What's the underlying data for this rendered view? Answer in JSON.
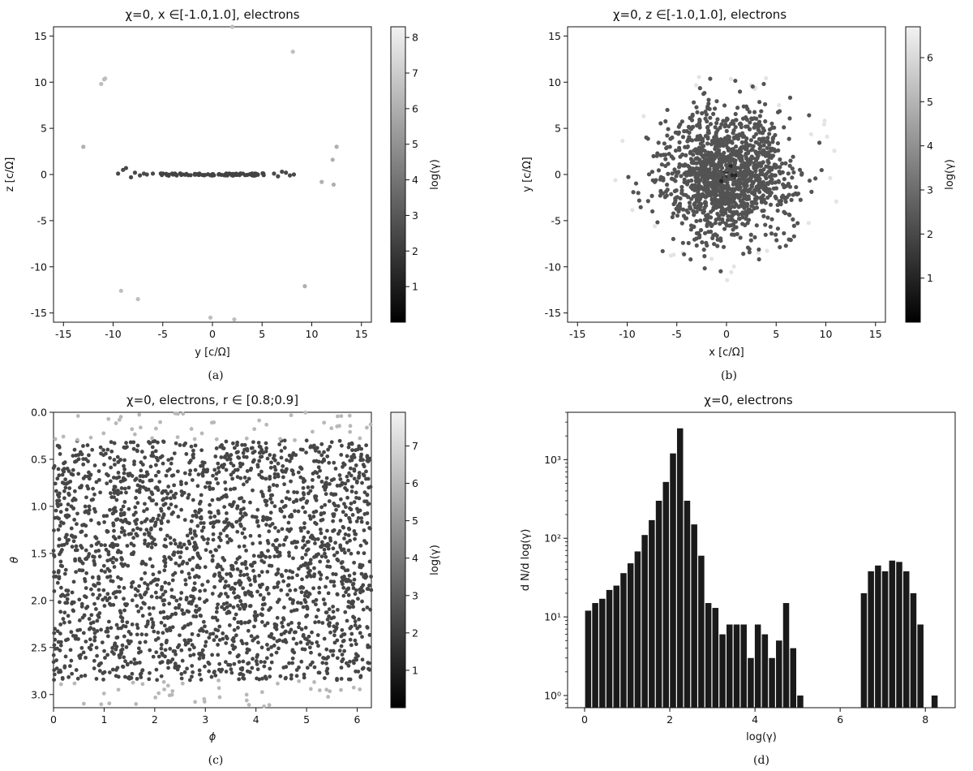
{
  "chart_data": [
    {
      "id": "a",
      "type": "scatter",
      "title": "χ=0, x ∈[-1.0,1.0], electrons",
      "xlabel": "y [c/Ω]",
      "ylabel": "z [c/Ω]",
      "caption": "(a)",
      "xlim": [
        -16,
        16
      ],
      "ylim": [
        -16,
        16
      ],
      "xticks": [
        -15,
        -10,
        -5,
        0,
        5,
        10,
        15
      ],
      "yticks": [
        -15,
        -10,
        -5,
        0,
        5,
        10,
        15
      ],
      "colorbar": {
        "label": "log(γ)",
        "range": [
          0,
          8.3
        ],
        "ticks": [
          1,
          2,
          3,
          4,
          5,
          6,
          7,
          8
        ]
      },
      "points": [
        [
          -11.2,
          9.8,
          6.5
        ],
        [
          -10.9,
          10.3,
          6.5
        ],
        [
          -10.8,
          10.4,
          6.5
        ],
        [
          -13.0,
          3.0,
          6.0
        ],
        [
          2.0,
          16.0,
          6.5
        ],
        [
          8.1,
          13.3,
          6.5
        ],
        [
          12.5,
          3.0,
          6.0
        ],
        [
          12.1,
          1.6,
          6.0
        ],
        [
          11.0,
          -0.8,
          6.0
        ],
        [
          12.2,
          -1.1,
          6.0
        ],
        [
          -9.2,
          -12.6,
          6.5
        ],
        [
          -7.5,
          -13.5,
          6.5
        ],
        [
          9.3,
          -12.1,
          6.0
        ],
        [
          -0.2,
          -15.5,
          6.5
        ],
        [
          2.2,
          -15.7,
          6.5
        ],
        [
          -9.5,
          0.1,
          2.5
        ],
        [
          -9.0,
          0.5,
          2.5
        ],
        [
          -8.7,
          0.7,
          2.5
        ],
        [
          -8.2,
          -0.3,
          2.5
        ],
        [
          -7.8,
          0.2,
          2.5
        ],
        [
          -7.3,
          -0.1,
          2.5
        ],
        [
          -6.9,
          0.1,
          2.5
        ],
        [
          -6.6,
          0.0,
          2.5
        ],
        [
          -6.0,
          0.1,
          2.5
        ],
        [
          6.2,
          0.1,
          2.5
        ],
        [
          6.6,
          -0.2,
          2.5
        ],
        [
          7.0,
          0.3,
          2.5
        ],
        [
          7.4,
          0.2,
          2.5
        ],
        [
          7.8,
          -0.1,
          2.5
        ],
        [
          8.2,
          0.0,
          2.5
        ]
      ],
      "core": {
        "y_range": [
          -5.2,
          5.2
        ],
        "z": 0,
        "count": 90,
        "log_gamma": 2.3
      }
    },
    {
      "id": "b",
      "type": "scatter",
      "title": "χ=0, z ∈[-1.0,1.0], electrons",
      "xlabel": "x [c/Ω]",
      "ylabel": "y [c/Ω]",
      "caption": "(b)",
      "xlim": [
        -16,
        16
      ],
      "ylim": [
        -16,
        16
      ],
      "xticks": [
        -15,
        -10,
        -5,
        0,
        5,
        10,
        15
      ],
      "yticks": [
        -15,
        -10,
        -5,
        0,
        5,
        10,
        15
      ],
      "colorbar": {
        "label": "log(γ)",
        "range": [
          0,
          6.7
        ],
        "ticks": [
          1,
          2,
          3,
          4,
          5,
          6
        ]
      },
      "distribution": {
        "center": [
          0,
          0
        ],
        "spread": 3.3,
        "count": 1400,
        "log_gamma_core": 2.3,
        "outer_radius": 11.5,
        "log_gamma_outer": 6.3
      }
    },
    {
      "id": "c",
      "type": "scatter",
      "title": "χ=0, electrons, r ∈ [0.8;0.9]",
      "xlabel": "ϕ",
      "ylabel": "θ",
      "caption": "(c)",
      "xlim": [
        0,
        6.28
      ],
      "ylim": [
        3.14,
        0
      ],
      "xticks": [
        0,
        1,
        2,
        3,
        4,
        5,
        6
      ],
      "yticks": [
        0.0,
        0.5,
        1.0,
        1.5,
        2.0,
        2.5,
        3.0
      ],
      "yticklabels": [
        "0.0",
        "0.5",
        "1.0",
        "1.5",
        "2.0",
        "2.5",
        "3.0"
      ],
      "colorbar": {
        "label": "log(γ)",
        "range": [
          0,
          7.9
        ],
        "ticks": [
          1,
          2,
          3,
          4,
          5,
          6,
          7
        ]
      },
      "distribution": {
        "count": 2300,
        "log_gamma_main": 2.3,
        "polar_count": 90,
        "log_gamma_polar": 6.0
      }
    },
    {
      "id": "d",
      "type": "bar",
      "title": "χ=0, electrons",
      "xlabel": "log(γ)",
      "ylabel": "d N/d log(γ)",
      "caption": "(d)",
      "yscale": "log",
      "xlim": [
        -0.4,
        8.7
      ],
      "ylim": [
        0.7,
        4000
      ],
      "xticks": [
        0,
        2,
        4,
        6,
        8
      ],
      "yticks": [
        1,
        10,
        100,
        1000
      ],
      "yticklabels": [
        "10⁰",
        "10¹",
        "10²",
        "10³"
      ],
      "bin_width": 0.166,
      "bins_start": [
        0.0,
        0.166,
        0.332,
        0.498,
        0.664,
        0.83,
        0.996,
        1.162,
        1.328,
        1.494,
        1.66,
        1.826,
        1.992,
        2.158,
        2.324,
        2.49,
        2.656,
        2.822,
        2.988,
        3.154,
        3.32,
        3.486,
        3.652,
        3.818,
        3.984,
        4.15,
        4.316,
        4.482,
        4.648,
        4.814,
        4.98,
        6.474,
        6.64,
        6.806,
        6.972,
        7.138,
        7.304,
        7.47,
        7.636,
        7.802,
        8.134
      ],
      "values": [
        12,
        15,
        17,
        22,
        25,
        36,
        48,
        68,
        110,
        170,
        300,
        520,
        1200,
        2500,
        300,
        150,
        60,
        15,
        13,
        6,
        8,
        8,
        8,
        3,
        8,
        6,
        3,
        5,
        15,
        4,
        1,
        20,
        38,
        45,
        38,
        52,
        50,
        38,
        20,
        8,
        1
      ]
    }
  ]
}
